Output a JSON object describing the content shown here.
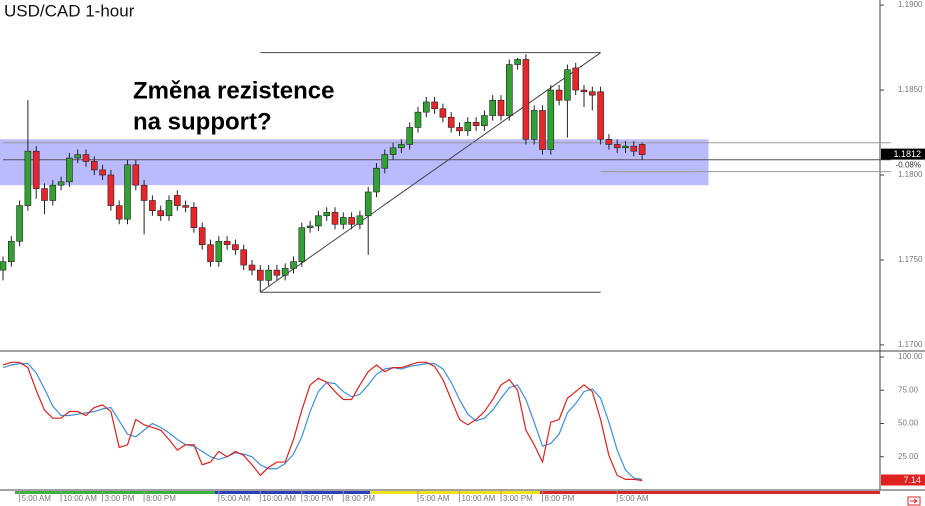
{
  "chart_data": [
    {
      "type": "candlestick",
      "title": "USD/CAD 1-hour",
      "annotation": [
        "Změna rezistence",
        "na support?"
      ],
      "categories": [
        null,
        null,
        "5:00 AM",
        null,
        null,
        null,
        null,
        "10:00 AM",
        null,
        null,
        null,
        null,
        "3:00 PM",
        null,
        null,
        null,
        null,
        "8:00 PM",
        null,
        null,
        null,
        null,
        null,
        null,
        null,
        null,
        "5:00 AM",
        null,
        null,
        null,
        null,
        "10:00 AM",
        null,
        null,
        null,
        null,
        "3:00 PM",
        null,
        null,
        null,
        null,
        "8:00 PM",
        null,
        null,
        null,
        null,
        null,
        null,
        null,
        null,
        "5:00 AM",
        null,
        null,
        null,
        null,
        "10:00 AM",
        null,
        null,
        null,
        null,
        "3:00 PM",
        null,
        null,
        null,
        null,
        "8:00 PM",
        null,
        null,
        null,
        null,
        null,
        null,
        null,
        null,
        "5:00 AM",
        null,
        null,
        null
      ],
      "open": [
        1.1744,
        1.1749,
        1.1761,
        1.1782,
        1.1814,
        1.1792,
        1.1785,
        1.1794,
        1.1796,
        1.181,
        1.1812,
        1.1808,
        1.1803,
        1.18,
        1.1782,
        1.1774,
        1.1806,
        1.1794,
        1.1785,
        1.1779,
        1.1776,
        1.1788,
        1.1782,
        1.1781,
        1.1769,
        1.1759,
        1.1749,
        1.1761,
        1.1759,
        1.1756,
        1.1747,
        1.1744,
        1.1738,
        1.1744,
        1.1741,
        1.1745,
        1.1749,
        1.1769,
        1.177,
        1.1776,
        1.1778,
        1.1771,
        1.1775,
        1.1771,
        1.1776,
        1.179,
        1.1804,
        1.1812,
        1.1816,
        1.1818,
        1.1828,
        1.1837,
        1.1843,
        1.1839,
        1.1834,
        1.1828,
        1.1826,
        1.1831,
        1.1829,
        1.1835,
        1.1844,
        1.1835,
        1.1865,
        1.1868,
        1.1821,
        1.1838,
        1.1815,
        1.185,
        1.1844,
        1.1863,
        1.185,
        1.1849,
        1.1849,
        1.1821,
        1.1818,
        1.1816,
        1.1817,
        1.1818
      ],
      "high": [
        1.1752,
        1.1764,
        1.1785,
        1.1844,
        1.1817,
        1.1795,
        1.1797,
        1.1799,
        1.1813,
        1.1815,
        1.1815,
        1.1811,
        1.1806,
        1.1803,
        1.1785,
        1.1809,
        1.1809,
        1.1797,
        1.1788,
        1.1782,
        1.1788,
        1.1791,
        1.1785,
        1.1784,
        1.1772,
        1.1762,
        1.1764,
        1.1764,
        1.1762,
        1.1759,
        1.175,
        1.1747,
        1.1747,
        1.1747,
        1.1748,
        1.1752,
        1.1772,
        1.1773,
        1.1779,
        1.1781,
        1.1781,
        1.1778,
        1.1778,
        1.1779,
        1.1793,
        1.1807,
        1.1815,
        1.1819,
        1.1821,
        1.1831,
        1.184,
        1.1846,
        1.1846,
        1.1842,
        1.1837,
        1.1831,
        1.1834,
        1.1834,
        1.1838,
        1.1847,
        1.1847,
        1.1868,
        1.1869,
        1.1871,
        1.1841,
        1.1841,
        1.1853,
        1.1853,
        1.1865,
        1.1866,
        1.1853,
        1.1852,
        1.1852,
        1.1824,
        1.1821,
        1.182,
        1.182,
        1.1819
      ],
      "low": [
        1.1738,
        1.1746,
        1.1758,
        1.1779,
        1.1786,
        1.1777,
        1.1782,
        1.1791,
        1.1793,
        1.1807,
        1.1805,
        1.18,
        1.1797,
        1.1779,
        1.1771,
        1.1771,
        1.1791,
        1.1765,
        1.1776,
        1.1773,
        1.1773,
        1.1779,
        1.1778,
        1.1766,
        1.1756,
        1.1746,
        1.1746,
        1.1756,
        1.1753,
        1.1744,
        1.1741,
        1.1731,
        1.1735,
        1.1738,
        1.1738,
        1.1742,
        1.1746,
        1.1766,
        1.1767,
        1.1773,
        1.1768,
        1.1768,
        1.1768,
        1.1768,
        1.1753,
        1.1787,
        1.1801,
        1.1809,
        1.1813,
        1.1815,
        1.1825,
        1.1834,
        1.1836,
        1.1831,
        1.1825,
        1.1823,
        1.1823,
        1.1826,
        1.1826,
        1.1832,
        1.1832,
        1.1832,
        1.1862,
        1.1818,
        1.1818,
        1.1812,
        1.1812,
        1.1841,
        1.1822,
        1.1847,
        1.184,
        1.1838,
        1.1818,
        1.1815,
        1.1813,
        1.1813,
        1.1811,
        1.1809
      ],
      "close": [
        1.1749,
        1.1761,
        1.1782,
        1.1814,
        1.1792,
        1.1785,
        1.1794,
        1.1796,
        1.181,
        1.1812,
        1.1808,
        1.1803,
        1.18,
        1.1782,
        1.1774,
        1.1806,
        1.1794,
        1.1785,
        1.1779,
        1.1776,
        1.1785,
        1.1782,
        1.1781,
        1.1769,
        1.1759,
        1.1749,
        1.1761,
        1.1759,
        1.1756,
        1.1747,
        1.1744,
        1.1738,
        1.1744,
        1.1741,
        1.1745,
        1.1749,
        1.1769,
        1.177,
        1.1776,
        1.1778,
        1.1771,
        1.1775,
        1.1771,
        1.1776,
        1.179,
        1.1804,
        1.1812,
        1.1816,
        1.1818,
        1.1828,
        1.1837,
        1.1843,
        1.1839,
        1.1834,
        1.1828,
        1.1826,
        1.1831,
        1.1829,
        1.1835,
        1.1844,
        1.1835,
        1.1865,
        1.1868,
        1.1821,
        1.1838,
        1.1815,
        1.185,
        1.1844,
        1.1862,
        1.185,
        1.1849,
        1.1847,
        1.1821,
        1.1818,
        1.1816,
        1.1817,
        1.1814,
        1.1812
      ],
      "up_color": "#32a032",
      "down_color": "#e8262a",
      "ylim": [
        1.1697,
        1.1903
      ],
      "yticks": [
        {
          "value": 1.19,
          "label": "1.1900"
        },
        {
          "value": 1.185,
          "label": "1.1850"
        },
        {
          "value": 1.18,
          "label": "1.1800"
        },
        {
          "value": 1.175,
          "label": "1.1750"
        },
        {
          "value": 1.17,
          "label": "1.1700"
        }
      ],
      "change_label": "-0.08%",
      "zone": {
        "x": [
          0,
          85
        ],
        "y": [
          1.1794,
          1.1821
        ],
        "color": "#8c8cff"
      },
      "lines": [
        {
          "x": [
            31,
            72
          ],
          "y": [
            1.1872,
            1.1872
          ],
          "color": "#444444"
        },
        {
          "x": [
            31,
            72
          ],
          "y": [
            1.1731,
            1.1731
          ],
          "color": "#444444"
        },
        {
          "x": [
            31,
            72
          ],
          "y": [
            1.1731,
            1.1872
          ],
          "color": "#444444"
        },
        {
          "x": [
            0,
            107
          ],
          "y": [
            1.1819,
            1.1819
          ],
          "color": "#9a9a9a"
        },
        {
          "x": [
            0,
            107
          ],
          "y": [
            1.1809,
            1.1809
          ],
          "color": "#555555"
        },
        {
          "x": [
            72,
            107
          ],
          "y": [
            1.1802,
            1.1802
          ],
          "color": "#9a9a9a"
        }
      ]
    },
    {
      "type": "line",
      "series": [
        {
          "color": "#e0201c",
          "values": [
            94,
            96,
            96,
            92,
            75,
            60,
            54,
            54,
            59,
            59,
            56,
            62,
            64,
            59,
            32,
            34,
            53,
            49,
            47,
            45,
            38,
            30,
            34,
            34,
            19,
            21,
            29,
            25,
            29,
            26,
            19,
            11,
            17,
            21,
            21,
            38,
            60,
            79,
            84,
            81,
            74,
            68,
            68,
            79,
            89,
            94,
            89,
            92,
            92,
            94,
            96,
            96,
            93,
            83,
            68,
            53,
            49,
            53,
            59,
            68,
            79,
            83,
            75,
            45,
            34,
            21,
            51,
            53,
            69,
            74,
            79,
            74,
            53,
            26,
            11,
            8,
            8,
            7.14
          ]
        },
        {
          "color": "#3b8fe0",
          "values": [
            92,
            94,
            95,
            95,
            88,
            76,
            63,
            56,
            56,
            57,
            58,
            59,
            61,
            62,
            52,
            42,
            40,
            45,
            50,
            47,
            43,
            38,
            34,
            33,
            29,
            25,
            23,
            25,
            28,
            27,
            25,
            19,
            16,
            16,
            20,
            27,
            40,
            59,
            74,
            81,
            80,
            74,
            70,
            72,
            79,
            87,
            91,
            92,
            91,
            93,
            94,
            95,
            95,
            91,
            81,
            68,
            57,
            52,
            54,
            60,
            69,
            77,
            79,
            68,
            51,
            33,
            35,
            42,
            58,
            65,
            74,
            76,
            69,
            51,
            30,
            15,
            9,
            8
          ]
        }
      ],
      "ylim": [
        0,
        100
      ],
      "yticks": [
        {
          "value": 100,
          "label": "100.00"
        },
        {
          "value": 75,
          "label": "75.00"
        },
        {
          "value": 50,
          "label": "50.00"
        },
        {
          "value": 25,
          "label": "25.00"
        }
      ]
    }
  ]
}
